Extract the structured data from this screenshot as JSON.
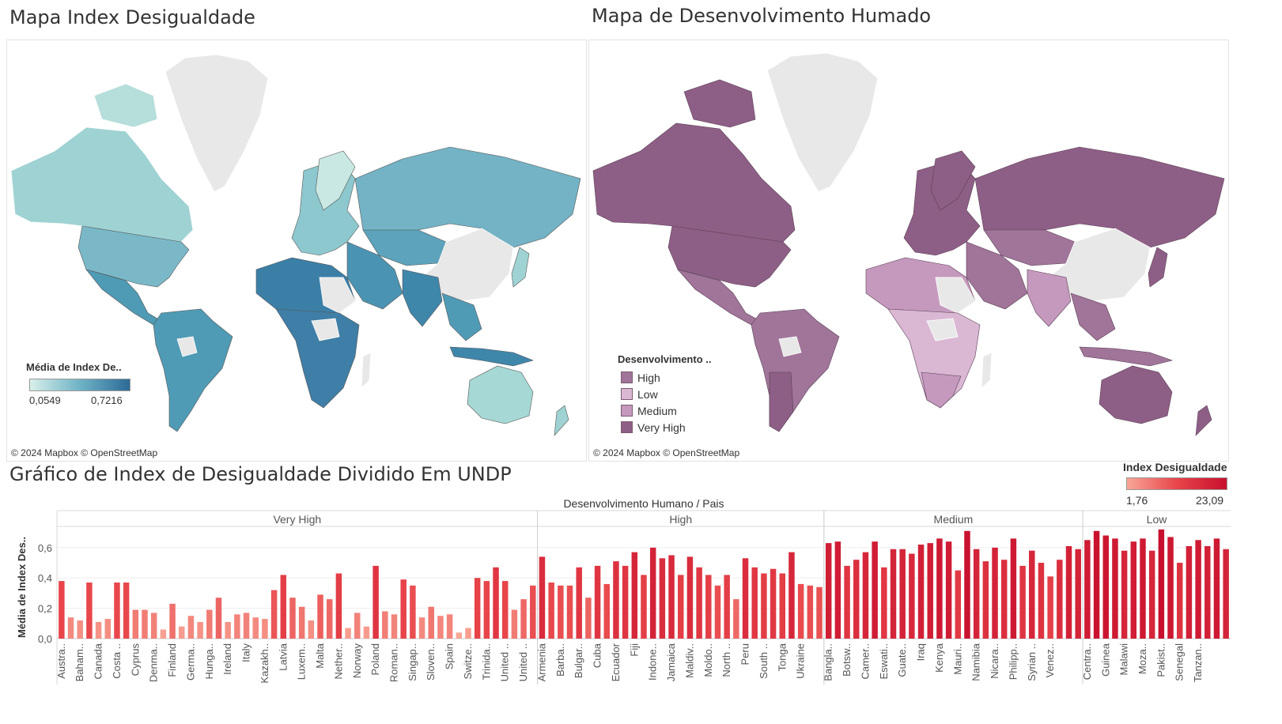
{
  "map1": {
    "title": "Mapa Index Desigualdade",
    "legend_title": "Média de Index De..",
    "legend_min": "0,0549",
    "legend_max": "0,7216",
    "gradient_colors": [
      "#d8efe9",
      "#6fb3c6",
      "#2c6b98"
    ],
    "attribution": "© 2024 Mapbox © OpenStreetMap"
  },
  "map2": {
    "title": "Mapa de Desenvolvimento Humado",
    "legend_title": "Desenvolvimento ..",
    "legend_items": [
      {
        "label": "High",
        "color": "#a07599"
      },
      {
        "label": "Low",
        "color": "#dab8d4"
      },
      {
        "label": "Medium",
        "color": "#c599bd"
      },
      {
        "label": "Very High",
        "color": "#8e5f86"
      }
    ],
    "attribution": "© 2024 Mapbox © OpenStreetMap"
  },
  "chart_title": "Gráfico de Index de Desigualdade Dividido Em UNDP",
  "color_legend": {
    "title": "Index Desigualdade",
    "min": "1,76",
    "max": "23,09",
    "colors": [
      "#f8a796",
      "#e8454a",
      "#c8102e"
    ]
  },
  "chart_data": {
    "type": "bar",
    "header": "Desenvolvimento Humano / Pais",
    "ylabel": "Média de Index Des..",
    "ylim": [
      0,
      0.74
    ],
    "yticks": [
      "0,0",
      "0,2",
      "0,4",
      "0,6"
    ],
    "ytick_values": [
      0,
      0.2,
      0.4,
      0.6
    ],
    "groups": [
      {
        "name": "Very High",
        "values": [
          0.38,
          0.14,
          0.12,
          0.37,
          0.11,
          0.13,
          0.37,
          0.37,
          0.19,
          0.19,
          0.17,
          0.06,
          0.23,
          0.08,
          0.15,
          0.11,
          0.19,
          0.27,
          0.11,
          0.16,
          0.17,
          0.14,
          0.13,
          0.32,
          0.42,
          0.27,
          0.21,
          0.12,
          0.29,
          0.26,
          0.43,
          0.07,
          0.17,
          0.08,
          0.48,
          0.18,
          0.16,
          0.39,
          0.35,
          0.14,
          0.21,
          0.15,
          0.16,
          0.04,
          0.07,
          0.4,
          0.38,
          0.47,
          0.38,
          0.19,
          0.26,
          0.35
        ],
        "labels": [
          "Austra..",
          "Baham..",
          "Canada",
          "Costa ..",
          "Cyprus",
          "Denma..",
          "Finland",
          "Germa..",
          "Hunga..",
          "Ireland",
          "Italy",
          "Kazakh..",
          "Latvia",
          "Luxem..",
          "Malta",
          "Nether..",
          "Norway",
          "Poland",
          "Roman..",
          "Singap..",
          "Sloven..",
          "Spain",
          "Switze..",
          "Trinida..",
          "United ..",
          "United .."
        ],
        "label_every": 2
      },
      {
        "name": "High",
        "values": [
          0.54,
          0.37,
          0.35,
          0.35,
          0.47,
          0.27,
          0.48,
          0.36,
          0.51,
          0.48,
          0.57,
          0.42,
          0.6,
          0.53,
          0.55,
          0.42,
          0.54,
          0.47,
          0.42,
          0.35,
          0.42,
          0.26,
          0.53,
          0.47,
          0.43,
          0.46,
          0.43,
          0.57,
          0.36,
          0.35,
          0.34
        ],
        "labels": [
          "Armenia",
          "Barba..",
          "Bulgar..",
          "Cuba",
          "Ecuador",
          "Fiji",
          "Indone..",
          "Jamaica",
          "Maldiv..",
          "Moldo..",
          "North ..",
          "Peru",
          "South ..",
          "Tonga",
          "Ukraine"
        ],
        "label_every": 2
      },
      {
        "name": "Medium",
        "values": [
          0.63,
          0.64,
          0.48,
          0.52,
          0.57,
          0.64,
          0.47,
          0.59,
          0.59,
          0.56,
          0.62,
          0.63,
          0.66,
          0.64,
          0.45,
          0.71,
          0.59,
          0.51,
          0.6,
          0.52,
          0.66,
          0.48,
          0.58,
          0.5,
          0.41,
          0.52,
          0.61,
          0.59
        ],
        "labels": [
          "Bangla..",
          "Botsw..",
          "Camer..",
          "Eswati..",
          "Guate..",
          "Iraq",
          "Kenya",
          "Mauri..",
          "Namibia",
          "Nicara..",
          "Philipp..",
          "Syrian ..",
          "Venez.."
        ],
        "label_every": 2
      },
      {
        "name": "Low",
        "values": [
          0.65,
          0.71,
          0.68,
          0.66,
          0.58,
          0.64,
          0.66,
          0.58,
          0.72,
          0.67,
          0.5,
          0.61,
          0.65,
          0.61,
          0.66,
          0.59
        ],
        "labels": [
          "Centra..",
          "Guinea",
          "Malawi",
          "Moza..",
          "Pakist..",
          "Senegal",
          "Tanzan.."
        ],
        "label_every": 2
      }
    ]
  }
}
